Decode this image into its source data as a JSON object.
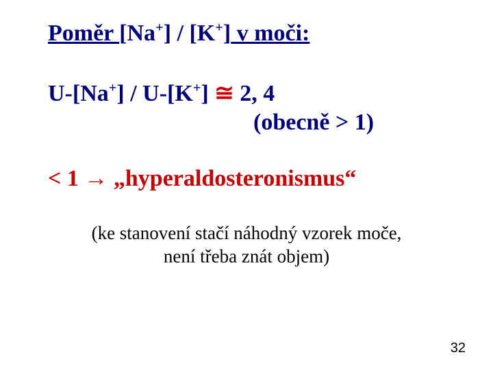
{
  "title": {
    "prefix": "Poměr  ",
    "na_open": "[Na",
    "plus": "+",
    "na_close": "] / [K",
    "k_close": "]",
    "suffix": "  v moči:"
  },
  "eq": {
    "una_open": "U-[Na",
    "plus1": "+",
    "una_close": "]  /  U-[K",
    "plus2": "+",
    "uk_close": "]   ",
    "approx": "≅",
    "value": "  2, 4"
  },
  "paren": "(obecně > 1)",
  "lt": {
    "lhs": "< 1    ",
    "arrow": "→",
    "rhs": "   „hyperaldosteronismus“"
  },
  "note": {
    "l1": "(ke stanovení stačí náhodný vzorek moče,",
    "l2": "není třeba znát objem)"
  },
  "pagenum": "32",
  "colors": {
    "navy": "#000080",
    "red": "#cc0000",
    "black": "#000000",
    "bg": "#ffffff"
  }
}
